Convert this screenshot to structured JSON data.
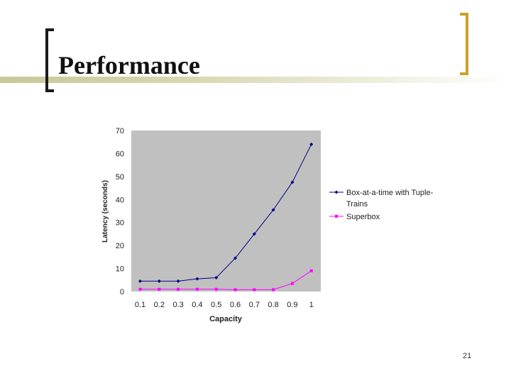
{
  "slide": {
    "title": "Performance",
    "page_number": "21"
  },
  "colors": {
    "accent_bracket": "#c9a227",
    "title_band": "#c8c89a",
    "plot_area": "#c0c0c0",
    "series1": "#000080",
    "series2": "#ff00ff"
  },
  "chart_data": {
    "type": "line",
    "xlabel": "Capacity",
    "ylabel": "Latency (seconds)",
    "x": [
      0.1,
      0.2,
      0.3,
      0.4,
      0.5,
      0.6,
      0.7,
      0.8,
      0.9,
      1
    ],
    "x_tick_labels": [
      "0.1",
      "0.2",
      "0.3",
      "0.4",
      "0.5",
      "0.6",
      "0.7",
      "0.8",
      "0.9",
      "1"
    ],
    "y_ticks": [
      0,
      10,
      20,
      30,
      40,
      50,
      60,
      70
    ],
    "ylim": [
      0,
      70
    ],
    "grid": false,
    "legend_position": "right",
    "series": [
      {
        "name": "Box-at-a-time with Tuple-Trains",
        "legend_lines": [
          "Box-at-a-time with Tuple-",
          "Trains"
        ],
        "marker": "diamond",
        "color": "#000080",
        "values": [
          4.5,
          4.5,
          4.5,
          5.5,
          6,
          14.5,
          25,
          35.5,
          47.5,
          64
        ]
      },
      {
        "name": "Superbox",
        "legend_lines": [
          "Superbox"
        ],
        "marker": "square",
        "color": "#ff00ff",
        "values": [
          1,
          1,
          1,
          1,
          1,
          0.8,
          0.8,
          0.8,
          3.5,
          9
        ]
      }
    ]
  }
}
